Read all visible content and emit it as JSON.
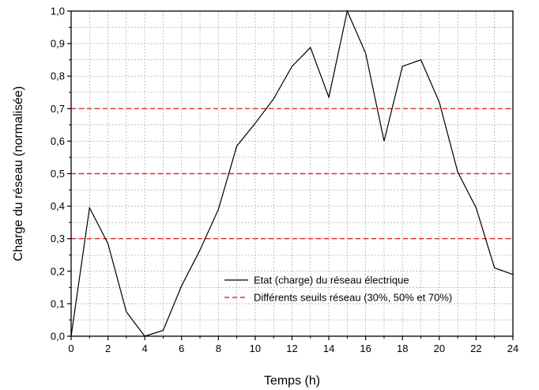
{
  "chart_data": {
    "type": "line",
    "title": "",
    "xlabel": "Temps (h)",
    "ylabel": "Charge du réseau (normalisée)",
    "xlim": [
      0,
      24
    ],
    "ylim": [
      0,
      1
    ],
    "x_ticks": [
      0,
      2,
      4,
      6,
      8,
      10,
      12,
      14,
      16,
      18,
      20,
      22,
      24
    ],
    "x_tick_labels": [
      "0",
      "2",
      "4",
      "6",
      "8",
      "10",
      "12",
      "14",
      "16",
      "18",
      "20",
      "22",
      "24"
    ],
    "y_ticks": [
      0,
      0.1,
      0.2,
      0.3,
      0.4,
      0.5,
      0.6,
      0.7,
      0.8,
      0.9,
      1.0
    ],
    "y_tick_labels": [
      "0,0",
      "0,1",
      "0,2",
      "0,3",
      "0,4",
      "0,5",
      "0,6",
      "0,7",
      "0,8",
      "0,9",
      "1,0"
    ],
    "grid": true,
    "legend_position": "bottom-right",
    "series": [
      {
        "name": "Etat (charge) du réseau électrique",
        "style": "solid",
        "color": "#000000",
        "x": [
          0,
          1,
          2,
          3,
          4,
          5,
          6,
          7,
          8,
          9,
          10,
          11,
          12,
          13,
          14,
          15,
          16,
          17,
          18,
          19,
          20,
          21,
          22,
          23,
          24
        ],
        "values": [
          0.0,
          0.395,
          0.285,
          0.075,
          0.0,
          0.018,
          0.155,
          0.265,
          0.39,
          0.585,
          0.655,
          0.73,
          0.83,
          0.888,
          0.735,
          1.0,
          0.87,
          0.6,
          0.83,
          0.85,
          0.72,
          0.505,
          0.395,
          0.21,
          0.19
        ]
      },
      {
        "name": "Différents seuils réseau (30%, 50% et 70%)",
        "style": "dashed",
        "color": "#e8282c",
        "thresholds": [
          0.3,
          0.5,
          0.7
        ]
      }
    ]
  }
}
